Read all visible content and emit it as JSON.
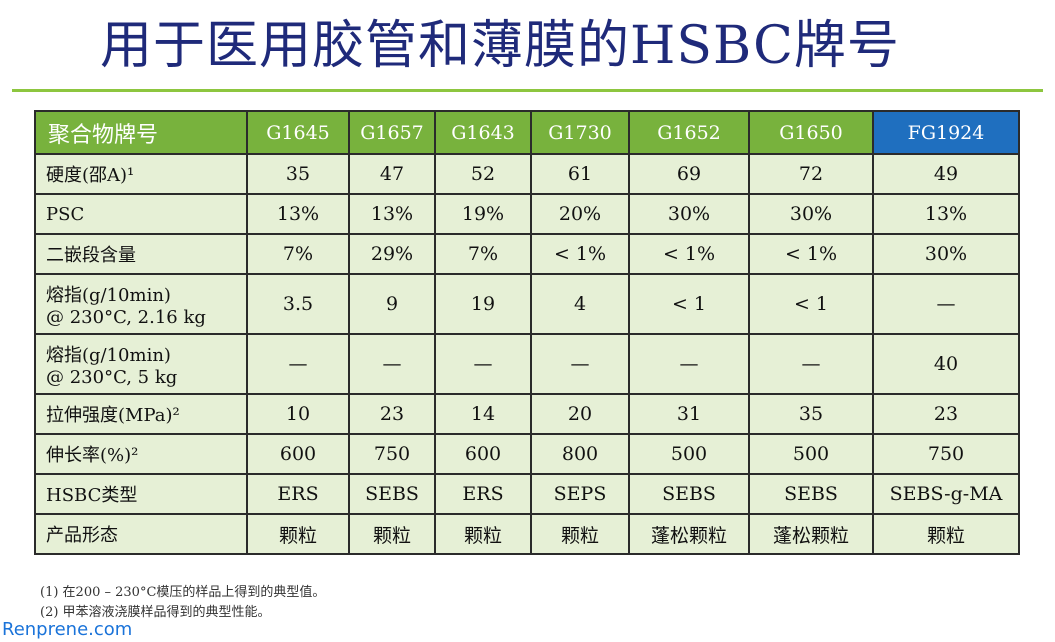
{
  "title": "用于医用胶管和薄膜的HSBC牌号",
  "table": {
    "header": [
      "聚合物牌号",
      "G1645",
      "G1657",
      "G1643",
      "G1730",
      "G1652",
      "G1650",
      "FG1924"
    ],
    "rows": [
      {
        "label": "硬度(邵A)¹",
        "values": [
          "35",
          "47",
          "52",
          "61",
          "69",
          "72",
          "49"
        ]
      },
      {
        "label": "PSC",
        "values": [
          "13%",
          "13%",
          "19%",
          "20%",
          "30%",
          "30%",
          "13%"
        ]
      },
      {
        "label": "二嵌段含量",
        "values": [
          "7%",
          "29%",
          "7%",
          "< 1%",
          "< 1%",
          "< 1%",
          "30%"
        ]
      },
      {
        "label_line1": "熔指(g/10min)",
        "label_line2": "@ 230°C, 2.16 kg",
        "values": [
          "3.5",
          "9",
          "19",
          "4",
          "< 1",
          "< 1",
          "—"
        ]
      },
      {
        "label_line1": "熔指(g/10min)",
        "label_line2": "@ 230°C, 5 kg",
        "values": [
          "—",
          "—",
          "—",
          "—",
          "—",
          "—",
          "40"
        ]
      },
      {
        "label": "拉伸强度(MPa)²",
        "values": [
          "10",
          "23",
          "14",
          "20",
          "31",
          "35",
          "23"
        ]
      },
      {
        "label": "伸长率(%)²",
        "values": [
          "600",
          "750",
          "600",
          "800",
          "500",
          "500",
          "750"
        ]
      },
      {
        "label": "HSBC类型",
        "values": [
          "ERS",
          "SEBS",
          "ERS",
          "SEPS",
          "SEBS",
          "SEBS",
          "SEBS-g-MA"
        ]
      },
      {
        "label": "产品形态",
        "values": [
          "颗粒",
          "颗粒",
          "颗粒",
          "颗粒",
          "蓬松颗粒",
          "蓬松颗粒",
          "颗粒"
        ]
      }
    ]
  },
  "footnotes": [
    "(1) 在200 – 230°C模压的样品上得到的典型值。",
    "(2) 甲苯溶液浇膜样品得到的典型性能。"
  ],
  "watermark": "Renprene.com",
  "colors": {
    "header_green": "#78b23d",
    "header_blue": "#1f6fbf",
    "row_bg": "#e6f0d6",
    "title": "#1f2a7a"
  }
}
